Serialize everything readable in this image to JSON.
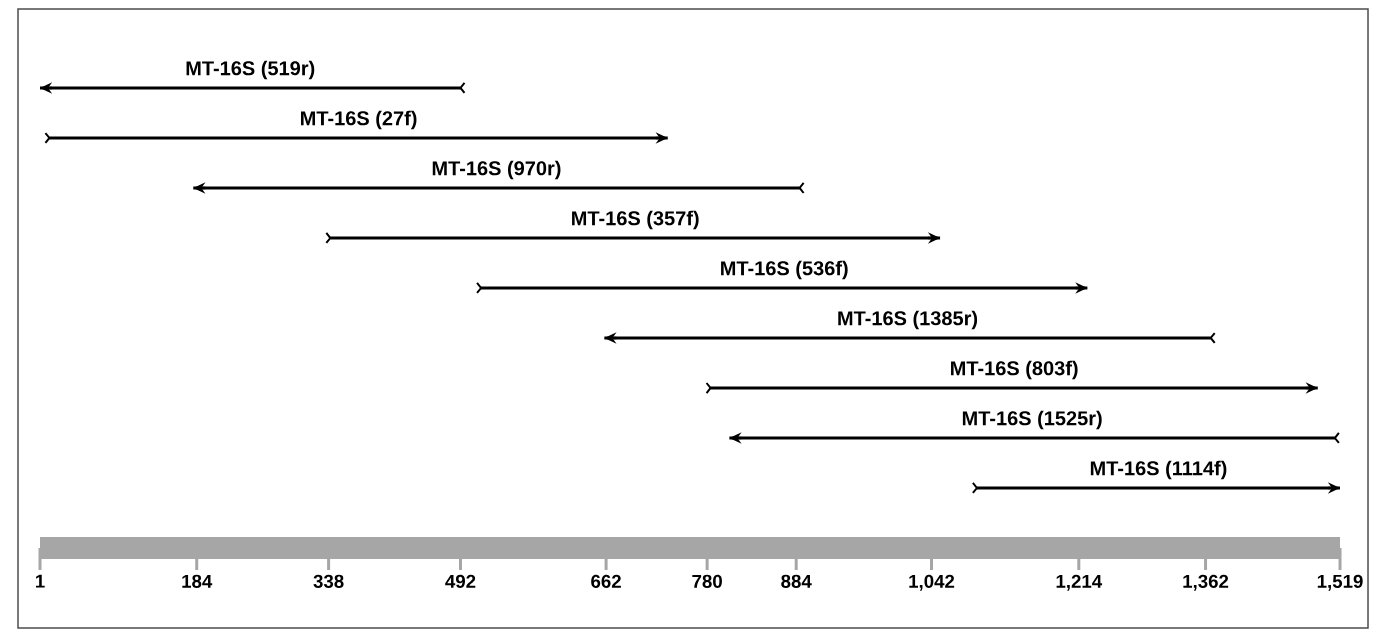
{
  "chart_data": {
    "type": "bar",
    "orientation": "horizontal",
    "tick_labels": "x",
    "color": "#000000",
    "categories": [
      null,
      null,
      null,
      null,
      null,
      null,
      null,
      null,
      null
    ],
    "annotations": [
      "MT-16S (519r)",
      "MT-16S (27f)",
      "MT-16S (970r)",
      "MT-16S (357f)",
      "MT-16S (536f)",
      "MT-16S (1385r)",
      "MT-16S (803f)",
      "MT-16S (1525r)",
      "MT-16S (1114f)"
    ],
    "base": [
      492,
      12,
      888,
      340,
      516,
      1368,
      784,
      1513,
      1095
    ],
    "values": [
      -491,
      722,
      -708,
      712,
      708,
      -708,
      709,
      -707,
      424
    ],
    "xlim": [
      1,
      1519
    ],
    "xticks": [
      1,
      184,
      338,
      492,
      662,
      780,
      884,
      {
        "value": 1042,
        "label": "1,042"
      },
      {
        "value": 1214,
        "label": "1,214"
      },
      {
        "value": 1362,
        "label": "1,362"
      },
      {
        "value": 1519,
        "label": "1,519"
      }
    ]
  }
}
